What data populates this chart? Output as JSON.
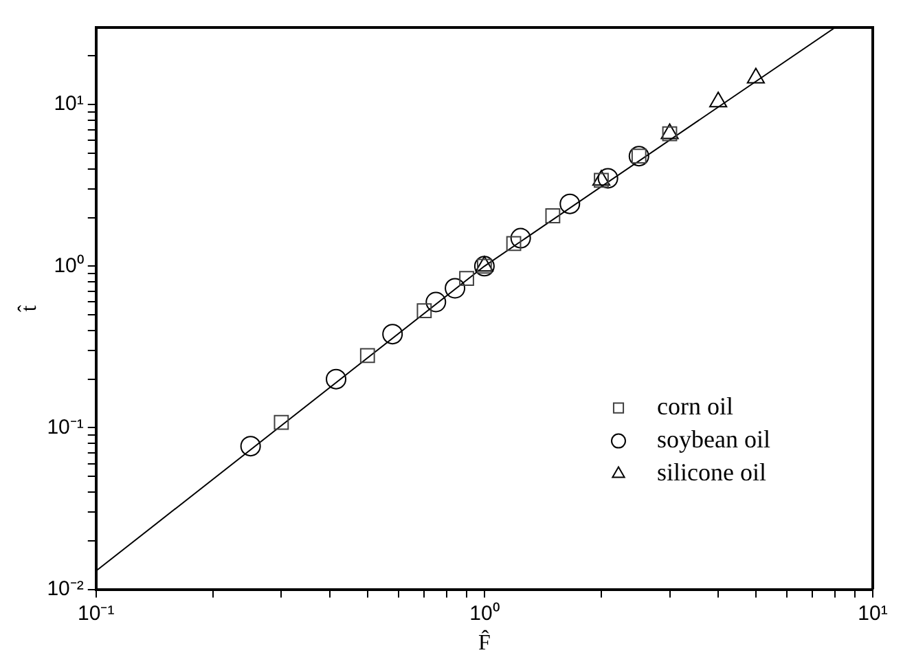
{
  "chart_data": {
    "type": "scatter",
    "xlabel": "F̂",
    "ylabel": "t̂",
    "log": "xy",
    "grid": false,
    "legend": "bottom right",
    "xlim": [
      0.1,
      10
    ],
    "ylim": [
      0.01,
      30
    ],
    "xticks": [
      {
        "value": 0.1,
        "label": "10⁻¹"
      },
      {
        "value": 0.2,
        "label": null
      },
      {
        "value": 0.3,
        "label": null
      },
      {
        "value": 0.4,
        "label": null
      },
      {
        "value": 0.5,
        "label": null
      },
      {
        "value": 0.6,
        "label": null
      },
      {
        "value": 0.7,
        "label": null
      },
      {
        "value": 0.8,
        "label": null
      },
      {
        "value": 0.9,
        "label": null
      },
      {
        "value": 1,
        "label": "10⁰"
      },
      {
        "value": 2,
        "label": null
      },
      {
        "value": 3,
        "label": null
      },
      {
        "value": 4,
        "label": null
      },
      {
        "value": 5,
        "label": null
      },
      {
        "value": 6,
        "label": null
      },
      {
        "value": 7,
        "label": null
      },
      {
        "value": 8,
        "label": null
      },
      {
        "value": 9,
        "label": null
      },
      {
        "value": 10,
        "label": "10¹"
      }
    ],
    "yticks": [
      {
        "value": 0.01,
        "label": "10⁻²"
      },
      {
        "value": 0.02,
        "label": null
      },
      {
        "value": 0.03,
        "label": null
      },
      {
        "value": 0.04,
        "label": null
      },
      {
        "value": 0.05,
        "label": null
      },
      {
        "value": 0.06,
        "label": null
      },
      {
        "value": 0.07,
        "label": null
      },
      {
        "value": 0.08,
        "label": null
      },
      {
        "value": 0.09,
        "label": null
      },
      {
        "value": 0.1,
        "label": "10⁻¹"
      },
      {
        "value": 0.2,
        "label": null
      },
      {
        "value": 0.3,
        "label": null
      },
      {
        "value": 0.4,
        "label": null
      },
      {
        "value": 0.5,
        "label": null
      },
      {
        "value": 0.6,
        "label": null
      },
      {
        "value": 0.7,
        "label": null
      },
      {
        "value": 0.8,
        "label": null
      },
      {
        "value": 0.9,
        "label": null
      },
      {
        "value": 1,
        "label": "10⁰"
      },
      {
        "value": 2,
        "label": null
      },
      {
        "value": 3,
        "label": null
      },
      {
        "value": 4,
        "label": null
      },
      {
        "value": 5,
        "label": null
      },
      {
        "value": 6,
        "label": null
      },
      {
        "value": 7,
        "label": null
      },
      {
        "value": 8,
        "label": null
      },
      {
        "value": 9,
        "label": null
      },
      {
        "value": 10,
        "label": "10¹"
      },
      {
        "value": 20,
        "label": null
      }
    ],
    "series": [
      {
        "name": "corn oil",
        "marker": "square",
        "color": "#404040",
        "x": [
          0.3,
          0.5,
          0.7,
          0.9,
          1,
          1.19,
          1.5,
          2,
          2.5,
          3
        ],
        "values": [
          0.108,
          0.28,
          0.53,
          0.84,
          1,
          1.38,
          2.05,
          3.4,
          4.8,
          6.6
        ]
      },
      {
        "name": "soybean oil",
        "marker": "circle",
        "color": "#000000",
        "x": [
          0.25,
          0.415,
          0.58,
          0.75,
          0.84,
          1,
          1.24,
          1.66,
          2.08,
          2.5
        ],
        "values": [
          0.077,
          0.2,
          0.38,
          0.6,
          0.73,
          1,
          1.49,
          2.43,
          3.5,
          4.8
        ]
      },
      {
        "name": "silicone oil",
        "marker": "triangle",
        "color": "#000000",
        "x": [
          1,
          2,
          3,
          4,
          5
        ],
        "values": [
          1,
          3.4,
          6.6,
          10.4,
          14.6
        ]
      },
      {
        "type": "line",
        "marker": "none",
        "color": "#000000",
        "x": [
          0.1,
          1,
          8
        ],
        "values": [
          0.013,
          1,
          30
        ]
      }
    ]
  }
}
